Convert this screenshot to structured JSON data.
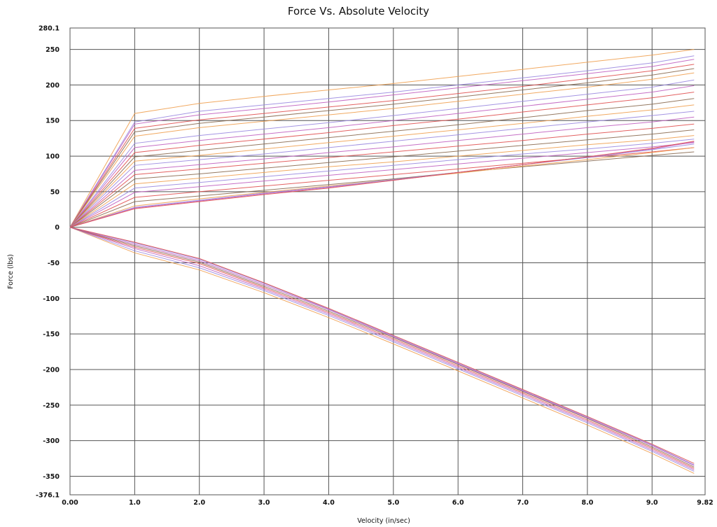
{
  "chart_data": {
    "type": "line",
    "title": "Force Vs. Absolute Velocity",
    "xlabel": "Velocity (in/sec)",
    "ylabel": "Force (lbs)",
    "xlim": [
      0,
      9.82
    ],
    "ylim": [
      -376.1,
      280.1
    ],
    "x_ticks": [
      {
        "value": 0,
        "label": "0.00"
      },
      {
        "value": 1,
        "label": "1.0"
      },
      {
        "value": 2,
        "label": "2.0"
      },
      {
        "value": 3,
        "label": "3.0"
      },
      {
        "value": 4,
        "label": "4.0"
      },
      {
        "value": 5,
        "label": "5.0"
      },
      {
        "value": 6,
        "label": "6.0"
      },
      {
        "value": 7,
        "label": "7.0"
      },
      {
        "value": 8,
        "label": "8.0"
      },
      {
        "value": 9,
        "label": "9.0"
      },
      {
        "value": 9.82,
        "label": "9.82"
      }
    ],
    "y_ticks": [
      {
        "value": 280.1,
        "label": "280.1"
      },
      {
        "value": 250,
        "label": "250"
      },
      {
        "value": 200,
        "label": "200"
      },
      {
        "value": 150,
        "label": "150"
      },
      {
        "value": 100,
        "label": "100"
      },
      {
        "value": 50,
        "label": "50"
      },
      {
        "value": 0,
        "label": "0"
      },
      {
        "value": -50,
        "label": "-50"
      },
      {
        "value": -100,
        "label": "-100"
      },
      {
        "value": -150,
        "label": "-150"
      },
      {
        "value": -200,
        "label": "-200"
      },
      {
        "value": -250,
        "label": "-250"
      },
      {
        "value": -300,
        "label": "-300"
      },
      {
        "value": -350,
        "label": "-350"
      },
      {
        "value": -376.1,
        "label": "-376.1"
      }
    ],
    "grid": true,
    "legend": "none",
    "x": [
      0,
      1,
      2,
      3,
      4,
      5,
      6,
      7,
      8,
      9,
      9.65
    ],
    "series": [
      {
        "group": "rebound",
        "color": "#f0a050",
        "values": [
          0,
          160,
          174,
          184,
          193,
          202,
          212,
          222,
          232,
          242,
          250
        ]
      },
      {
        "group": "rebound",
        "color": "#9a8ae0",
        "values": [
          0,
          148,
          163,
          172,
          181,
          190,
          200,
          210,
          220,
          231,
          241
        ]
      },
      {
        "group": "rebound",
        "color": "#c060c0",
        "values": [
          0,
          145,
          158,
          167,
          176,
          186,
          196,
          206,
          216,
          226,
          236
        ]
      },
      {
        "group": "rebound",
        "color": "#e05050",
        "values": [
          0,
          139,
          151,
          160,
          169,
          178,
          188,
          198,
          209,
          220,
          229
        ]
      },
      {
        "group": "rebound",
        "color": "#8a6a50",
        "values": [
          0,
          134,
          146,
          155,
          164,
          173,
          183,
          193,
          203,
          214,
          223
        ]
      },
      {
        "group": "rebound",
        "color": "#f0a050",
        "values": [
          0,
          128,
          140,
          149,
          158,
          167,
          177,
          187,
          197,
          208,
          217
        ]
      },
      {
        "group": "rebound",
        "color": "#9a8ae0",
        "values": [
          0,
          118,
          129,
          138,
          147,
          157,
          167,
          177,
          187,
          197,
          207
        ]
      },
      {
        "group": "rebound",
        "color": "#c060c0",
        "values": [
          0,
          112,
          122,
          131,
          140,
          150,
          160,
          170,
          180,
          190,
          199
        ]
      },
      {
        "group": "rebound",
        "color": "#e05050",
        "values": [
          0,
          105,
          115,
          124,
          133,
          143,
          152,
          162,
          172,
          182,
          190
        ]
      },
      {
        "group": "rebound",
        "color": "#8a6a50",
        "values": [
          0,
          99,
          108,
          117,
          126,
          135,
          144,
          154,
          164,
          173,
          181
        ]
      },
      {
        "group": "rebound",
        "color": "#f0a050",
        "values": [
          0,
          93,
          101,
          110,
          119,
          128,
          137,
          146,
          156,
          165,
          172
        ]
      },
      {
        "group": "rebound",
        "color": "#9a8ae0",
        "values": [
          0,
          87,
          95,
          103,
          112,
          121,
          130,
          139,
          148,
          157,
          163
        ]
      },
      {
        "group": "rebound",
        "color": "#c060c0",
        "values": [
          0,
          80,
          88,
          96,
          105,
          113,
          122,
          131,
          140,
          148,
          155
        ]
      },
      {
        "group": "rebound",
        "color": "#e05050",
        "values": [
          0,
          74,
          82,
          90,
          98,
          106,
          114,
          122,
          131,
          139,
          145
        ]
      },
      {
        "group": "rebound",
        "color": "#8a6a50",
        "values": [
          0,
          68,
          75,
          83,
          91,
          99,
          107,
          115,
          123,
          131,
          137
        ]
      },
      {
        "group": "rebound",
        "color": "#f0a050",
        "values": [
          0,
          61,
          69,
          77,
          85,
          92,
          100,
          108,
          116,
          123,
          129
        ]
      },
      {
        "group": "rebound",
        "color": "#9a8ae0",
        "values": [
          0,
          55,
          63,
          71,
          79,
          87,
          95,
          103,
          110,
          118,
          124
        ]
      },
      {
        "group": "rebound",
        "color": "#c060c0",
        "values": [
          0,
          49,
          57,
          65,
          73,
          81,
          89,
          97,
          105,
          113,
          119
        ]
      },
      {
        "group": "rebound",
        "color": "#e05050",
        "values": [
          0,
          42,
          50,
          58,
          66,
          74,
          82,
          90,
          98,
          106,
          112
        ]
      },
      {
        "group": "rebound",
        "color": "#8a6a50",
        "values": [
          0,
          36,
          44,
          52,
          60,
          68,
          77,
          85,
          93,
          101,
          106
        ]
      },
      {
        "group": "rebound",
        "color": "#f0a050",
        "values": [
          0,
          30,
          40,
          49,
          58,
          67,
          76,
          86,
          95,
          105,
          112
        ]
      },
      {
        "group": "rebound",
        "color": "#9a8ae0",
        "values": [
          0,
          28,
          38,
          48,
          57,
          67,
          77,
          88,
          98,
          109,
          117
        ]
      },
      {
        "group": "rebound",
        "color": "#c060c0",
        "values": [
          0,
          27,
          37,
          47,
          56,
          66,
          77,
          88,
          99,
          110,
          120
        ]
      },
      {
        "group": "rebound",
        "color": "#e05050",
        "values": [
          0,
          26,
          36,
          46,
          55,
          66,
          77,
          88,
          99,
          111,
          121
        ]
      },
      {
        "group": "compression",
        "color": "#f0a050",
        "values": [
          0,
          -36,
          -60,
          -92,
          -127,
          -164,
          -202,
          -240,
          -278,
          -318,
          -346
        ]
      },
      {
        "group": "compression",
        "color": "#9a8ae0",
        "values": [
          0,
          -33,
          -57,
          -89,
          -124,
          -161,
          -199,
          -237,
          -275,
          -315,
          -343
        ]
      },
      {
        "group": "compression",
        "color": "#c060c0",
        "values": [
          0,
          -30,
          -54,
          -87,
          -122,
          -159,
          -197,
          -235,
          -273,
          -313,
          -341
        ]
      },
      {
        "group": "compression",
        "color": "#e05050",
        "values": [
          0,
          -28,
          -51,
          -85,
          -120,
          -157,
          -195,
          -233,
          -271,
          -311,
          -339
        ]
      },
      {
        "group": "compression",
        "color": "#8a6a50",
        "values": [
          0,
          -26,
          -49,
          -83,
          -118,
          -155,
          -193,
          -231,
          -269,
          -309,
          -337
        ]
      },
      {
        "group": "compression",
        "color": "#c060c0",
        "values": [
          0,
          -24,
          -47,
          -81,
          -116,
          -154,
          -192,
          -230,
          -268,
          -307,
          -335
        ]
      },
      {
        "group": "compression",
        "color": "#9a8ae0",
        "values": [
          0,
          -22,
          -45,
          -79,
          -115,
          -153,
          -191,
          -229,
          -267,
          -306,
          -334
        ]
      },
      {
        "group": "compression",
        "color": "#e05050",
        "values": [
          0,
          -21,
          -44,
          -78,
          -114,
          -152,
          -190,
          -228,
          -266,
          -305,
          -332
        ]
      }
    ]
  }
}
